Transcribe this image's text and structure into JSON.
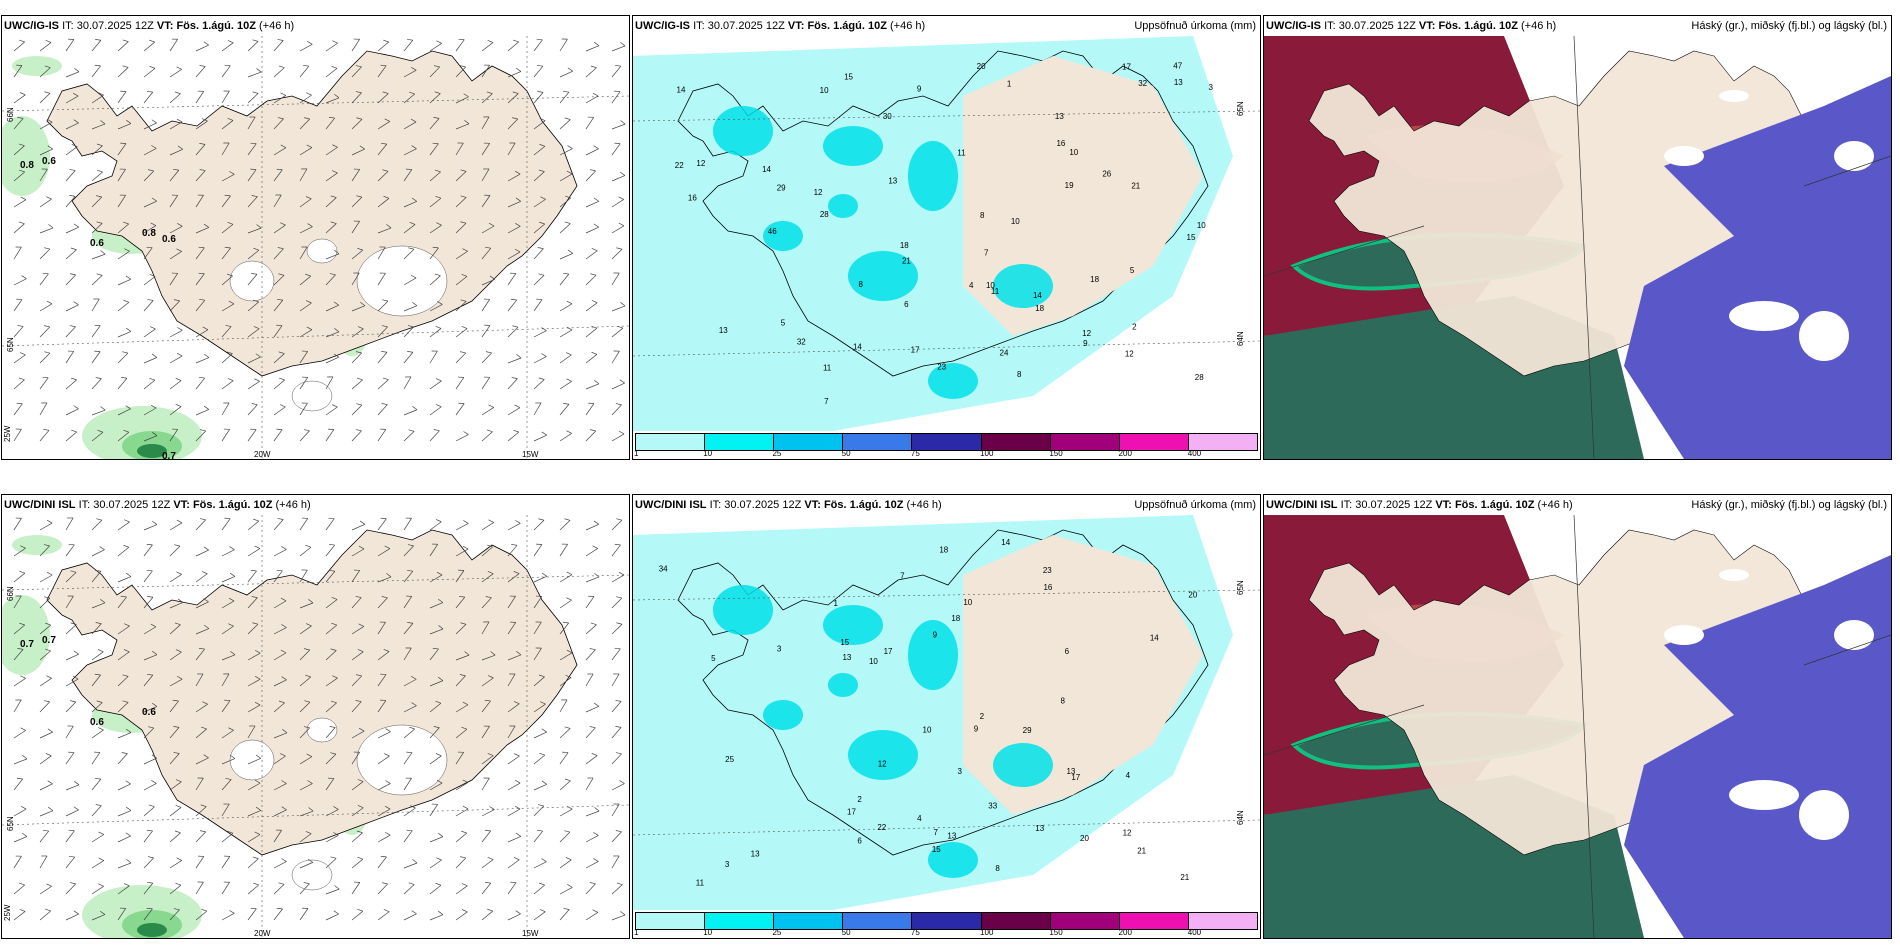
{
  "panels": [
    {
      "id": "p1",
      "model": "UWC/IG-IS",
      "it_label": "IT:",
      "it_value": "30.07.2025 12Z",
      "vt_label": "VT:",
      "vt_value": "Fös. 1.ágú. 10Z",
      "lead": "(+46 h)",
      "right_label": "",
      "kind": "wind",
      "values": [
        "0.8",
        "0.6",
        "0.6",
        "0.8",
        "0.6",
        "0.7"
      ],
      "axis_labels": [
        "20W",
        "15W",
        "25W",
        "66N",
        "65N"
      ]
    },
    {
      "id": "p2",
      "model": "UWC/IG-IS",
      "it_label": "IT:",
      "it_value": "30.07.2025 12Z",
      "vt_label": "VT:",
      "vt_value": "Fös. 1.ágú. 10Z",
      "lead": "(+46 h)",
      "right_label": "Uppsöfnuð úrkoma (mm)",
      "kind": "precip",
      "values": [
        "8",
        "10",
        "5",
        "14",
        "26",
        "24",
        "15",
        "28",
        "21",
        "32",
        "13",
        "22",
        "18",
        "10",
        "19",
        "17",
        "16",
        "32",
        "18",
        "21",
        "12",
        "11",
        "11",
        "9",
        "10",
        "10",
        "46",
        "29",
        "23",
        "30",
        "18",
        "47",
        "13",
        "14",
        "15",
        "17",
        "20",
        "12",
        "10",
        "14",
        "9",
        "8",
        "3",
        "2",
        "1",
        "5",
        "4",
        "6",
        "7",
        "13",
        "8",
        "11",
        "12",
        "16",
        "14",
        "28",
        "12",
        "13",
        "7"
      ],
      "axis_labels": [
        "65N",
        "64N"
      ],
      "colorbar_ticks": [
        "1",
        "10",
        "25",
        "50",
        "75",
        "100",
        "150",
        "200",
        "400"
      ],
      "colorbar_colors": [
        "#b4f8f8",
        "#00f2f2",
        "#00c2ee",
        "#3a7ae8",
        "#2a2aa8",
        "#6a0048",
        "#a0007a",
        "#ee10b0",
        "#f4b0f4"
      ]
    },
    {
      "id": "p3",
      "model": "UWC/IG-IS",
      "it_label": "IT:",
      "it_value": "30.07.2025 12Z",
      "vt_label": "VT:",
      "vt_value": "Fös. 1.ágú. 10Z",
      "lead": "(+46 h)",
      "right_label": "Háský (gr.), miðský (fj.bl.) og lágský (bl.)",
      "kind": "cloud"
    },
    {
      "id": "p4",
      "model": "UWC/DINI ISL",
      "it_label": "IT:",
      "it_value": "30.07.2025 12Z",
      "vt_label": "VT:",
      "vt_value": "Fös. 1.ágú. 10Z",
      "lead": "(+46 h)",
      "right_label": "",
      "kind": "wind",
      "values": [
        "0.7",
        "0.7",
        "0.6",
        "0.6"
      ],
      "axis_labels": [
        "20W",
        "15W",
        "25W",
        "66N",
        "65N"
      ]
    },
    {
      "id": "p5",
      "model": "UWC/DINI ISL",
      "it_label": "IT:",
      "it_value": "30.07.2025 12Z",
      "vt_label": "VT:",
      "vt_value": "Fös. 1.ágú. 10Z",
      "lead": "(+46 h)",
      "right_label": "Uppsöfnuð úrkoma (mm)",
      "kind": "precip",
      "values": [
        "3",
        "4",
        "2",
        "3",
        "7",
        "14",
        "12",
        "23",
        "20",
        "17",
        "21",
        "13",
        "22",
        "18",
        "13",
        "15",
        "13",
        "25",
        "10",
        "20",
        "34",
        "13",
        "15",
        "29",
        "17",
        "16",
        "17",
        "18",
        "14",
        "33",
        "21",
        "12",
        "10",
        "11",
        "9",
        "8",
        "7",
        "6",
        "5",
        "4",
        "3",
        "2",
        "1",
        "6",
        "8",
        "10",
        "9",
        "13"
      ],
      "axis_labels": [
        "65N",
        "64N"
      ],
      "colorbar_ticks": [
        "1",
        "10",
        "25",
        "50",
        "75",
        "100",
        "150",
        "200",
        "400"
      ],
      "colorbar_colors": [
        "#b4f8f8",
        "#00f2f2",
        "#00c2ee",
        "#3a7ae8",
        "#2a2aa8",
        "#6a0048",
        "#a0007a",
        "#ee10b0",
        "#f4b0f4"
      ]
    },
    {
      "id": "p6",
      "model": "UWC/DINI ISL",
      "it_label": "IT:",
      "it_value": "30.07.2025 12Z",
      "vt_label": "VT:",
      "vt_value": "Fös. 1.ágú. 10Z",
      "lead": "(+46 h)",
      "right_label": "Háský (gr.), miðský (fj.bl.) og lágský (bl.)",
      "kind": "cloud"
    }
  ],
  "colors": {
    "land": "#f2e6d8",
    "sea_precip": "#b4f8f8",
    "cyan_heavy": "#00e0e8",
    "green_light": "#c8f0c8",
    "green_mid": "#88d890",
    "green_dark": "#2a8a4a",
    "snow": "#ffffff",
    "cloud_high": "#2e6a5a",
    "cloud_high_edge": "#10c080",
    "cloud_mid": "#8a1a3a",
    "cloud_mid_light": "#c05050",
    "cloud_low": "#5a58c8"
  }
}
